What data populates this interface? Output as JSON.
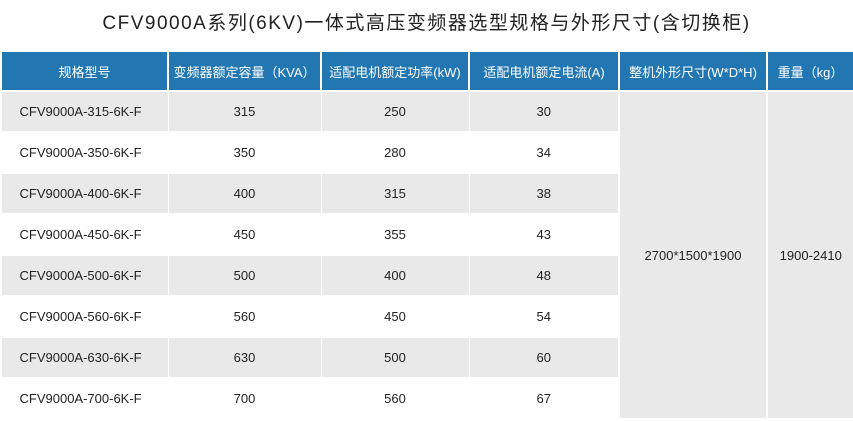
{
  "title": "CFV9000A系列(6KV)一体式高压变频器选型规格与外形尺寸(含切换柜)",
  "table": {
    "headers": [
      "规格型号",
      "变频器额定容量（KVA）",
      "适配电机额定功率(kW)",
      "适配电机额定电流(A)",
      "整机外形尺寸(W*D*H)",
      "重量（kg）"
    ],
    "rows": [
      [
        "CFV9000A-315-6K-F",
        "315",
        "250",
        "30"
      ],
      [
        "CFV9000A-350-6K-F",
        "350",
        "280",
        "34"
      ],
      [
        "CFV9000A-400-6K-F",
        "400",
        "315",
        "38"
      ],
      [
        "CFV9000A-450-6K-F",
        "450",
        "355",
        "43"
      ],
      [
        "CFV9000A-500-6K-F",
        "500",
        "400",
        "48"
      ],
      [
        "CFV9000A-560-6K-F",
        "560",
        "450",
        "54"
      ],
      [
        "CFV9000A-630-6K-F",
        "630",
        "500",
        "60"
      ],
      [
        "CFV9000A-700-6K-F",
        "700",
        "560",
        "67"
      ]
    ],
    "size": "2700*1500*1900",
    "weight": "1900-2410"
  }
}
